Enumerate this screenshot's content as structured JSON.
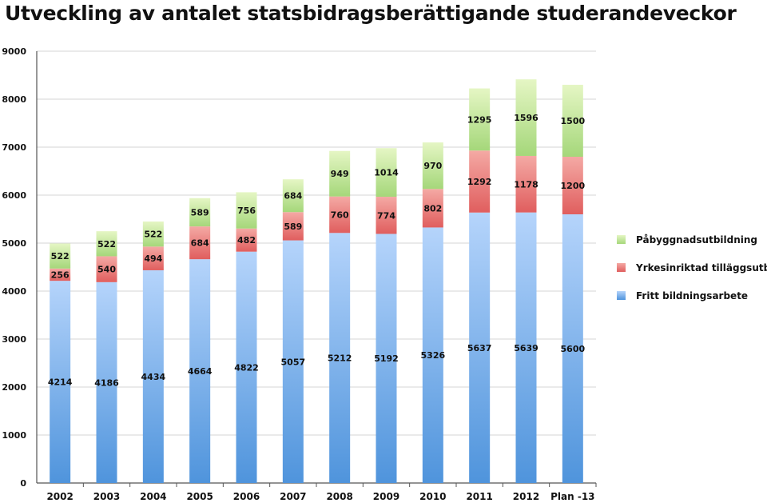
{
  "chart_data": {
    "type": "bar",
    "stacked": true,
    "title": "Utveckling av antalet statsbidragsberättigande studerandeveckor",
    "xlabel": "",
    "ylabel": "",
    "ylim": [
      0,
      9000
    ],
    "yticks": [
      0,
      1000,
      2000,
      3000,
      4000,
      5000,
      6000,
      7000,
      8000,
      9000
    ],
    "grid": true,
    "legend_position": "right",
    "categories": [
      "2002",
      "2003",
      "2004",
      "2005",
      "2006",
      "2007",
      "2008",
      "2009",
      "2010",
      "2011",
      "2012",
      "Plan -13"
    ],
    "series": [
      {
        "name": "Fritt bildningsarbete",
        "color": "#6ea6e6",
        "values": [
          4214,
          4186,
          4434,
          4664,
          4822,
          5057,
          5212,
          5192,
          5326,
          5637,
          5639,
          5600
        ]
      },
      {
        "name": "Yrkesinriktad tilläggsutb.",
        "color": "#ee8080",
        "values": [
          256,
          540,
          494,
          684,
          482,
          589,
          760,
          774,
          802,
          1292,
          1178,
          1200
        ]
      },
      {
        "name": "Påbyggnadsutbildning",
        "color": "#bfe59a",
        "values": [
          522,
          522,
          522,
          589,
          756,
          684,
          949,
          1014,
          970,
          1295,
          1596,
          1500
        ]
      }
    ],
    "legend_order": [
      "Påbyggnadsutbildning",
      "Yrkesinriktad tilläggsutb.",
      "Fritt bildningsarbete"
    ]
  }
}
